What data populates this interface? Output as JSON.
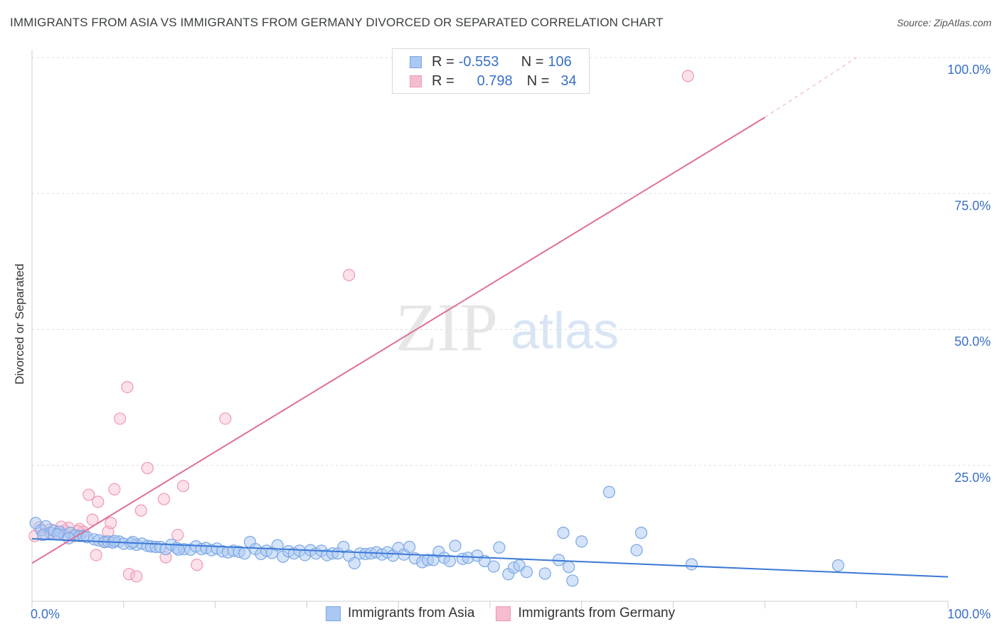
{
  "header": {
    "title": "IMMIGRANTS FROM ASIA VS IMMIGRANTS FROM GERMANY DIVORCED OR SEPARATED CORRELATION CHART",
    "source": "Source: ZipAtlas.com"
  },
  "watermark": {
    "zip": "ZIP",
    "atlas": "atlas"
  },
  "legend_stats": {
    "r_label": "R =",
    "n_label": "N =",
    "asia": {
      "r": "-0.553",
      "n": "106"
    },
    "germany": {
      "r": "0.798",
      "n": "34"
    }
  },
  "colors": {
    "asia_fill": "#a9c8f2",
    "asia_stroke": "#7aa7e6",
    "asia_line": "#3b78d6",
    "germany_fill": "#f6bdd0",
    "germany_stroke": "#ee98b6",
    "germany_line": "#e07098",
    "tick_label": "#3a6fc6"
  },
  "chart_data": {
    "type": "scatter",
    "title": "IMMIGRANTS FROM ASIA VS IMMIGRANTS FROM GERMANY DIVORCED OR SEPARATED CORRELATION CHART",
    "xlabel": "",
    "ylabel": "Divorced or Separated",
    "xlim": [
      0,
      100
    ],
    "ylim": [
      0,
      105
    ],
    "x_tick_labels": [
      "0.0%",
      "100.0%"
    ],
    "y_ticks": [
      25,
      50,
      75,
      100
    ],
    "y_tick_labels": [
      "25.0%",
      "50.0%",
      "75.0%",
      "100.0%"
    ],
    "legend_position": "top-center",
    "series": [
      {
        "name": "Immigrants from Asia",
        "r": -0.553,
        "n": 106,
        "trend": {
          "x": [
            0,
            100
          ],
          "y": [
            11.5,
            4.5
          ]
        },
        "points": [
          [
            0.4,
            14.4
          ],
          [
            1.0,
            13.1
          ],
          [
            1.5,
            13.8
          ],
          [
            2.0,
            12.6
          ],
          [
            2.4,
            13.0
          ],
          [
            3.0,
            12.8
          ],
          [
            3.5,
            12.2
          ],
          [
            4.2,
            12.6
          ],
          [
            4.7,
            12.1
          ],
          [
            5.2,
            12.0
          ],
          [
            5.6,
            12.0
          ],
          [
            6.0,
            11.8
          ],
          [
            6.8,
            11.4
          ],
          [
            7.3,
            11.2
          ],
          [
            7.9,
            10.9
          ],
          [
            8.3,
            11.0
          ],
          [
            8.8,
            10.8
          ],
          [
            9.5,
            11.0
          ],
          [
            10.0,
            10.6
          ],
          [
            10.8,
            10.6
          ],
          [
            11.4,
            10.4
          ],
          [
            12.0,
            10.6
          ],
          [
            12.6,
            10.2
          ],
          [
            13.0,
            10.1
          ],
          [
            13.5,
            10.0
          ],
          [
            14.0,
            10.0
          ],
          [
            14.6,
            9.6
          ],
          [
            15.2,
            10.4
          ],
          [
            15.8,
            9.8
          ],
          [
            16.6,
            9.6
          ],
          [
            17.3,
            9.5
          ],
          [
            17.9,
            10.1
          ],
          [
            18.5,
            9.6
          ],
          [
            19.0,
            9.8
          ],
          [
            19.6,
            9.4
          ],
          [
            20.2,
            9.7
          ],
          [
            20.8,
            9.2
          ],
          [
            21.4,
            9.0
          ],
          [
            22.0,
            9.3
          ],
          [
            22.6,
            9.1
          ],
          [
            23.2,
            8.8
          ],
          [
            23.8,
            10.9
          ],
          [
            24.4,
            9.6
          ],
          [
            25.0,
            8.7
          ],
          [
            25.6,
            9.3
          ],
          [
            26.2,
            8.9
          ],
          [
            26.8,
            10.3
          ],
          [
            27.4,
            8.2
          ],
          [
            28.0,
            9.2
          ],
          [
            28.6,
            8.8
          ],
          [
            29.2,
            9.3
          ],
          [
            29.8,
            8.5
          ],
          [
            30.4,
            9.4
          ],
          [
            31.0,
            8.8
          ],
          [
            31.6,
            9.3
          ],
          [
            32.2,
            8.5
          ],
          [
            32.8,
            8.8
          ],
          [
            33.4,
            8.8
          ],
          [
            34.0,
            10.0
          ],
          [
            34.6,
            8.4
          ],
          [
            35.2,
            7.0
          ],
          [
            35.8,
            8.8
          ],
          [
            36.4,
            8.7
          ],
          [
            37.0,
            8.8
          ],
          [
            37.6,
            9.0
          ],
          [
            38.2,
            8.6
          ],
          [
            38.8,
            9.0
          ],
          [
            39.4,
            8.4
          ],
          [
            40.0,
            9.8
          ],
          [
            40.6,
            8.6
          ],
          [
            41.2,
            10.0
          ],
          [
            41.8,
            7.9
          ],
          [
            42.6,
            7.2
          ],
          [
            43.2,
            7.6
          ],
          [
            43.8,
            7.6
          ],
          [
            44.4,
            9.1
          ],
          [
            45.0,
            8.0
          ],
          [
            45.6,
            7.4
          ],
          [
            46.2,
            10.2
          ],
          [
            47.0,
            7.8
          ],
          [
            47.6,
            8.0
          ],
          [
            48.6,
            8.4
          ],
          [
            49.4,
            7.4
          ],
          [
            50.4,
            6.4
          ],
          [
            51.0,
            9.9
          ],
          [
            52.0,
            5.0
          ],
          [
            52.6,
            6.2
          ],
          [
            53.2,
            6.6
          ],
          [
            54.0,
            5.4
          ],
          [
            56.0,
            5.1
          ],
          [
            57.5,
            7.6
          ],
          [
            58.0,
            12.6
          ],
          [
            58.6,
            6.3
          ],
          [
            59.0,
            3.8
          ],
          [
            60.0,
            11.0
          ],
          [
            63.0,
            20.1
          ],
          [
            66.0,
            9.4
          ],
          [
            66.5,
            12.6
          ],
          [
            72.0,
            6.8
          ],
          [
            88.0,
            6.6
          ],
          [
            1.2,
            12.2
          ],
          [
            2.8,
            12.3
          ],
          [
            4.0,
            11.6
          ],
          [
            9.0,
            11.1
          ],
          [
            16.0,
            9.5
          ],
          [
            11.0,
            10.9
          ]
        ]
      },
      {
        "name": "Immigrants from Germany",
        "r": 0.798,
        "n": 34,
        "trend": {
          "x": [
            0,
            80
          ],
          "y": [
            7.0,
            89.0
          ],
          "x_dashed_end": 90,
          "y_dashed_end": 100.0
        },
        "points": [
          [
            0.3,
            12.0
          ],
          [
            0.8,
            13.6
          ],
          [
            1.4,
            12.4
          ],
          [
            2.0,
            13.2
          ],
          [
            2.8,
            12.5
          ],
          [
            3.6,
            13.0
          ],
          [
            4.0,
            13.5
          ],
          [
            4.6,
            12.0
          ],
          [
            5.2,
            13.3
          ],
          [
            5.6,
            12.8
          ],
          [
            6.2,
            19.6
          ],
          [
            6.6,
            15.0
          ],
          [
            7.2,
            18.3
          ],
          [
            7.0,
            8.5
          ],
          [
            8.0,
            11.0
          ],
          [
            8.3,
            12.8
          ],
          [
            8.6,
            14.4
          ],
          [
            9.0,
            20.6
          ],
          [
            9.6,
            33.6
          ],
          [
            10.4,
            39.4
          ],
          [
            10.6,
            5.0
          ],
          [
            11.4,
            4.6
          ],
          [
            11.9,
            16.7
          ],
          [
            12.6,
            24.5
          ],
          [
            14.4,
            18.8
          ],
          [
            14.6,
            8.1
          ],
          [
            15.9,
            12.2
          ],
          [
            16.5,
            21.2
          ],
          [
            18.0,
            6.7
          ],
          [
            21.1,
            33.6
          ],
          [
            34.6,
            60.0
          ],
          [
            71.6,
            96.6
          ],
          [
            5.0,
            12.9
          ],
          [
            3.2,
            13.7
          ]
        ]
      }
    ]
  },
  "bottom_legend": {
    "asia": "Immigrants from Asia",
    "germany": "Immigrants from Germany"
  }
}
